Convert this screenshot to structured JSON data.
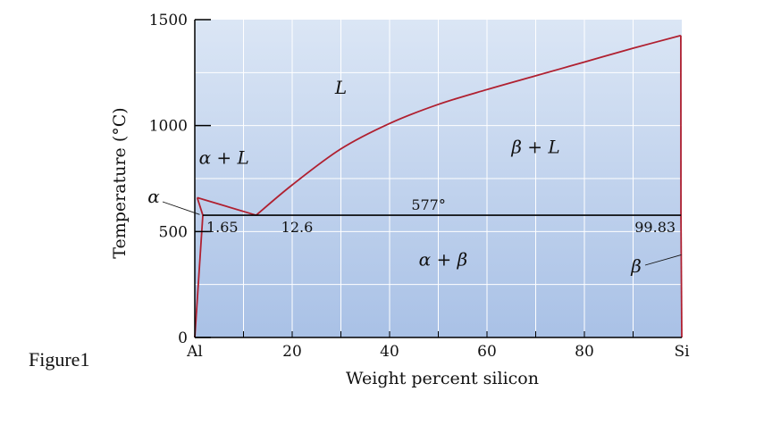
{
  "figure_label": "Figure1",
  "colors": {
    "plot_bg_top": "#dbe6f5",
    "plot_bg_bottom": "#a9c1e6",
    "grid": "#ffffff",
    "phase_line": "#b02030",
    "eutectic_line": "#000000",
    "axis": "#000000"
  },
  "chart_data": {
    "type": "line",
    "title": "",
    "xlabel": "Weight percent silicon",
    "ylabel": "Temperature (°C)",
    "xlim": [
      0,
      100
    ],
    "ylim": [
      0,
      1500
    ],
    "x_ticks": [
      {
        "value": 0,
        "label": "Al"
      },
      {
        "value": 20,
        "label": "20"
      },
      {
        "value": 40,
        "label": "40"
      },
      {
        "value": 60,
        "label": "60"
      },
      {
        "value": 80,
        "label": "80"
      },
      {
        "value": 100,
        "label": "Si"
      }
    ],
    "y_ticks": [
      {
        "value": 0,
        "label": "0"
      },
      {
        "value": 500,
        "label": "500"
      },
      {
        "value": 1000,
        "label": "1000"
      },
      {
        "value": 1500,
        "label": "1500"
      }
    ],
    "series": [
      {
        "name": "alpha-solvus",
        "x": [
          0,
          1.65
        ],
        "y": [
          0,
          577
        ]
      },
      {
        "name": "alpha-solidus",
        "x": [
          1.65,
          0.5
        ],
        "y": [
          577,
          660
        ]
      },
      {
        "name": "liquidus-Al-side",
        "x": [
          0.5,
          12.6
        ],
        "y": [
          660,
          577
        ]
      },
      {
        "name": "liquidus-Si-side",
        "x": [
          12.6,
          20,
          30,
          40,
          50,
          60,
          70,
          80,
          90,
          99.8
        ],
        "y": [
          577,
          720,
          890,
          1010,
          1100,
          1170,
          1235,
          1300,
          1365,
          1425
        ]
      },
      {
        "name": "beta-solidus",
        "x": [
          99.8,
          99.83
        ],
        "y": [
          1425,
          577
        ]
      },
      {
        "name": "beta-solvus",
        "x": [
          99.83,
          100
        ],
        "y": [
          577,
          0
        ]
      }
    ],
    "eutectic": {
      "temperature": 577,
      "x_start": 1.65,
      "x_end": 99.83,
      "label": "577°"
    },
    "composition_labels": [
      {
        "value": 1.65,
        "label": "1.65"
      },
      {
        "value": 12.6,
        "label": "12.6"
      },
      {
        "value": 99.83,
        "label": "99.83"
      }
    ],
    "region_labels": [
      {
        "name": "liquid",
        "text": "L",
        "x": 30,
        "y": 1150
      },
      {
        "name": "alpha-plus-liquid",
        "text": "α + L",
        "x": 6,
        "y": 820
      },
      {
        "name": "beta-plus-liquid",
        "text": "β + L",
        "x": 70,
        "y": 870
      },
      {
        "name": "alpha-plus-beta",
        "text": "α + β",
        "x": 51,
        "y": 340
      }
    ],
    "callouts": [
      {
        "name": "alpha",
        "text": "α",
        "point_x": 1.0,
        "point_y": 580
      },
      {
        "name": "beta",
        "text": "β",
        "point_x": 99.9,
        "point_y": 400
      }
    ]
  }
}
